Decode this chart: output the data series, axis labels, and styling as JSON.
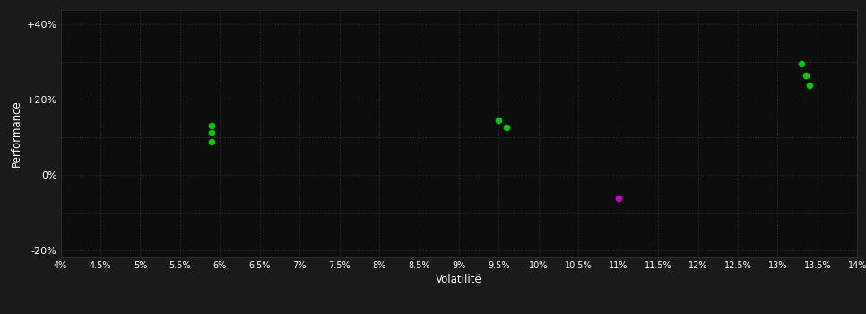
{
  "background_color": "#1a1a1a",
  "plot_bg_color": "#0d0d0d",
  "grid_color": "#2d2d2d",
  "text_color": "#ffffff",
  "xlabel": "Volatilité",
  "ylabel": "Performance",
  "xlim": [
    0.04,
    0.14
  ],
  "ylim": [
    -0.22,
    0.44
  ],
  "xticks": [
    0.04,
    0.045,
    0.05,
    0.055,
    0.06,
    0.065,
    0.07,
    0.075,
    0.08,
    0.085,
    0.09,
    0.095,
    0.1,
    0.105,
    0.11,
    0.115,
    0.12,
    0.125,
    0.13,
    0.135,
    0.14
  ],
  "xtick_labels": [
    "4%",
    "4.5%",
    "5%",
    "5.5%",
    "6%",
    "6.5%",
    "7%",
    "7.5%",
    "8%",
    "8.5%",
    "9%",
    "9.5%",
    "10%",
    "10.5%",
    "11%",
    "11.5%",
    "12%",
    "12.5%",
    "13%",
    "13.5%",
    "14%"
  ],
  "yticks": [
    -0.2,
    -0.1,
    0.0,
    0.1,
    0.2,
    0.3,
    0.4
  ],
  "ytick_labels": [
    "-20%",
    "",
    "0%",
    "",
    "+20%",
    "",
    "+40%"
  ],
  "green_points": [
    [
      0.059,
      0.132
    ],
    [
      0.059,
      0.112
    ],
    [
      0.059,
      0.087
    ],
    [
      0.095,
      0.145
    ],
    [
      0.096,
      0.127
    ],
    [
      0.133,
      0.295
    ],
    [
      0.1335,
      0.265
    ],
    [
      0.134,
      0.238
    ]
  ],
  "magenta_points": [
    [
      0.11,
      -0.062
    ]
  ],
  "green_color": "#00cc00",
  "magenta_color": "#cc00cc",
  "marker_size": 5.5
}
